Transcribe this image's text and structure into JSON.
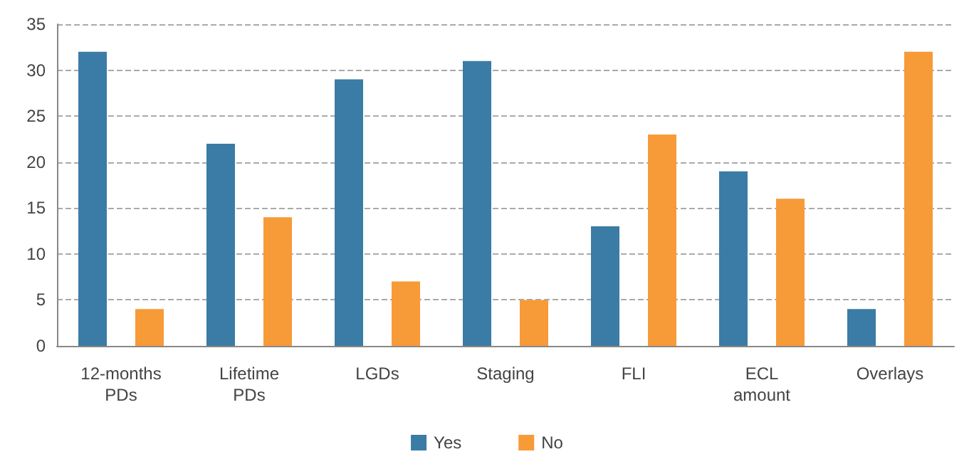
{
  "chart_data": {
    "type": "bar",
    "categories": [
      "12-months\nPDs",
      "Lifetime\nPDs",
      "LGDs",
      "Staging",
      "FLI",
      "ECL\namount",
      "Overlays"
    ],
    "series": [
      {
        "name": "Yes",
        "color": "#3a7ca5",
        "values": [
          32,
          22,
          29,
          31,
          13,
          19,
          4
        ]
      },
      {
        "name": "No",
        "color": "#f79a38",
        "values": [
          4,
          14,
          7,
          5,
          23,
          16,
          32
        ]
      }
    ],
    "ylim": [
      0,
      35
    ],
    "yticks": [
      0,
      5,
      10,
      15,
      20,
      25,
      30,
      35
    ],
    "grid": "y",
    "line_style": "dashed",
    "legend": "bottom"
  }
}
